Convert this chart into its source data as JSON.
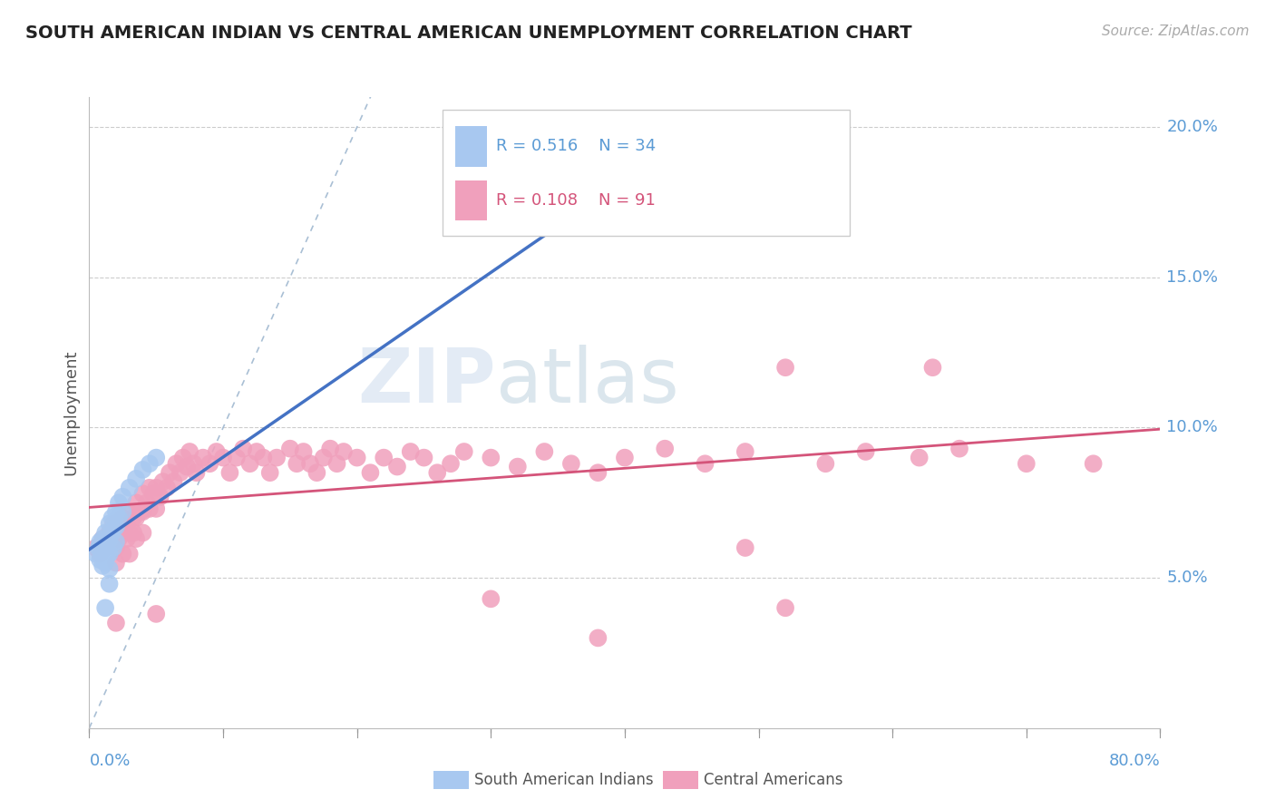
{
  "title": "SOUTH AMERICAN INDIAN VS CENTRAL AMERICAN UNEMPLOYMENT CORRELATION CHART",
  "source_text": "Source: ZipAtlas.com",
  "ylabel": "Unemployment",
  "xlim": [
    0,
    0.8
  ],
  "ylim": [
    0,
    0.21
  ],
  "ytick_right_labels": [
    "5.0%",
    "10.0%",
    "15.0%",
    "20.0%"
  ],
  "ytick_right_vals": [
    0.05,
    0.1,
    0.15,
    0.2
  ],
  "blue_color": "#a8c8f0",
  "pink_color": "#f0a0bc",
  "blue_line_color": "#4472c4",
  "pink_line_color": "#d4547a",
  "ref_line_color": "#a0b8d0",
  "legend_label_blue": "South American Indians",
  "legend_label_pink": "Central Americans",
  "blue_dots": [
    [
      0.005,
      0.058
    ],
    [
      0.007,
      0.06
    ],
    [
      0.008,
      0.062
    ],
    [
      0.008,
      0.056
    ],
    [
      0.01,
      0.063
    ],
    [
      0.01,
      0.058
    ],
    [
      0.01,
      0.054
    ],
    [
      0.012,
      0.065
    ],
    [
      0.012,
      0.06
    ],
    [
      0.012,
      0.055
    ],
    [
      0.013,
      0.062
    ],
    [
      0.013,
      0.057
    ],
    [
      0.015,
      0.068
    ],
    [
      0.015,
      0.063
    ],
    [
      0.015,
      0.058
    ],
    [
      0.015,
      0.053
    ],
    [
      0.015,
      0.048
    ],
    [
      0.017,
      0.07
    ],
    [
      0.017,
      0.065
    ],
    [
      0.018,
      0.06
    ],
    [
      0.02,
      0.072
    ],
    [
      0.02,
      0.067
    ],
    [
      0.02,
      0.062
    ],
    [
      0.022,
      0.075
    ],
    [
      0.022,
      0.07
    ],
    [
      0.025,
      0.077
    ],
    [
      0.025,
      0.072
    ],
    [
      0.03,
      0.08
    ],
    [
      0.035,
      0.083
    ],
    [
      0.04,
      0.086
    ],
    [
      0.045,
      0.088
    ],
    [
      0.05,
      0.09
    ],
    [
      0.38,
      0.17
    ],
    [
      0.012,
      0.04
    ]
  ],
  "pink_dots": [
    [
      0.005,
      0.06
    ],
    [
      0.008,
      0.058
    ],
    [
      0.01,
      0.063
    ],
    [
      0.012,
      0.06
    ],
    [
      0.015,
      0.065
    ],
    [
      0.017,
      0.062
    ],
    [
      0.018,
      0.068
    ],
    [
      0.02,
      0.06
    ],
    [
      0.02,
      0.055
    ],
    [
      0.022,
      0.063
    ],
    [
      0.025,
      0.07
    ],
    [
      0.025,
      0.065
    ],
    [
      0.025,
      0.058
    ],
    [
      0.028,
      0.068
    ],
    [
      0.028,
      0.063
    ],
    [
      0.03,
      0.072
    ],
    [
      0.03,
      0.065
    ],
    [
      0.03,
      0.058
    ],
    [
      0.033,
      0.07
    ],
    [
      0.033,
      0.065
    ],
    [
      0.035,
      0.075
    ],
    [
      0.035,
      0.07
    ],
    [
      0.035,
      0.063
    ],
    [
      0.038,
      0.072
    ],
    [
      0.04,
      0.078
    ],
    [
      0.04,
      0.072
    ],
    [
      0.04,
      0.065
    ],
    [
      0.043,
      0.075
    ],
    [
      0.045,
      0.08
    ],
    [
      0.045,
      0.073
    ],
    [
      0.048,
      0.078
    ],
    [
      0.05,
      0.08
    ],
    [
      0.05,
      0.073
    ],
    [
      0.053,
      0.077
    ],
    [
      0.055,
      0.082
    ],
    [
      0.058,
      0.08
    ],
    [
      0.06,
      0.085
    ],
    [
      0.063,
      0.082
    ],
    [
      0.065,
      0.088
    ],
    [
      0.068,
      0.085
    ],
    [
      0.07,
      0.09
    ],
    [
      0.073,
      0.087
    ],
    [
      0.075,
      0.092
    ],
    [
      0.078,
      0.088
    ],
    [
      0.08,
      0.085
    ],
    [
      0.085,
      0.09
    ],
    [
      0.09,
      0.088
    ],
    [
      0.095,
      0.092
    ],
    [
      0.1,
      0.09
    ],
    [
      0.105,
      0.085
    ],
    [
      0.11,
      0.09
    ],
    [
      0.115,
      0.093
    ],
    [
      0.12,
      0.088
    ],
    [
      0.125,
      0.092
    ],
    [
      0.13,
      0.09
    ],
    [
      0.135,
      0.085
    ],
    [
      0.14,
      0.09
    ],
    [
      0.15,
      0.093
    ],
    [
      0.155,
      0.088
    ],
    [
      0.16,
      0.092
    ],
    [
      0.165,
      0.088
    ],
    [
      0.17,
      0.085
    ],
    [
      0.175,
      0.09
    ],
    [
      0.18,
      0.093
    ],
    [
      0.185,
      0.088
    ],
    [
      0.19,
      0.092
    ],
    [
      0.2,
      0.09
    ],
    [
      0.21,
      0.085
    ],
    [
      0.22,
      0.09
    ],
    [
      0.23,
      0.087
    ],
    [
      0.24,
      0.092
    ],
    [
      0.25,
      0.09
    ],
    [
      0.26,
      0.085
    ],
    [
      0.27,
      0.088
    ],
    [
      0.28,
      0.092
    ],
    [
      0.3,
      0.09
    ],
    [
      0.32,
      0.087
    ],
    [
      0.34,
      0.092
    ],
    [
      0.36,
      0.088
    ],
    [
      0.38,
      0.085
    ],
    [
      0.4,
      0.09
    ],
    [
      0.43,
      0.093
    ],
    [
      0.46,
      0.088
    ],
    [
      0.49,
      0.092
    ],
    [
      0.52,
      0.12
    ],
    [
      0.55,
      0.088
    ],
    [
      0.58,
      0.092
    ],
    [
      0.62,
      0.09
    ],
    [
      0.65,
      0.093
    ],
    [
      0.7,
      0.088
    ],
    [
      0.02,
      0.035
    ],
    [
      0.05,
      0.038
    ],
    [
      0.52,
      0.04
    ],
    [
      0.38,
      0.03
    ],
    [
      0.3,
      0.043
    ],
    [
      0.49,
      0.06
    ],
    [
      0.63,
      0.12
    ],
    [
      0.75,
      0.088
    ]
  ]
}
